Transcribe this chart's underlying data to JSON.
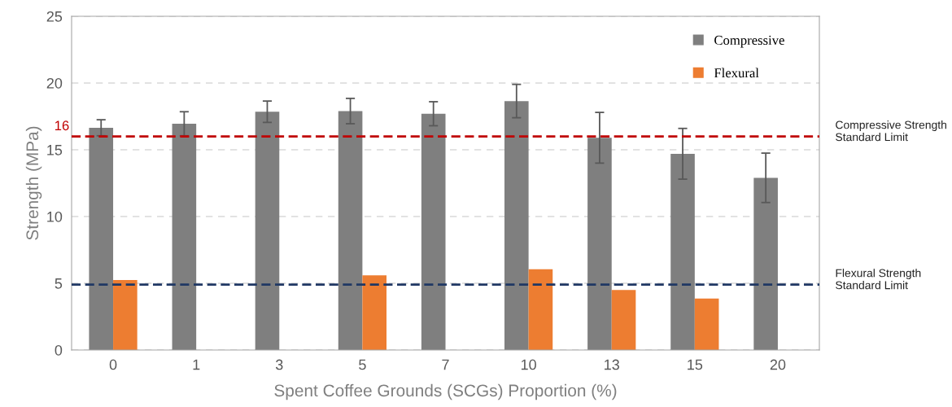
{
  "chart_data": {
    "type": "bar",
    "xlabel": "Spent Coffee Grounds (SCGs) Proportion (%)",
    "ylabel": "Strength (MPa)",
    "categories": [
      "0",
      "1",
      "3",
      "5",
      "7",
      "10",
      "13",
      "15",
      "20"
    ],
    "series": [
      {
        "name": "Compressive",
        "color": "#7f7f7f",
        "values": [
          16.65,
          16.95,
          17.85,
          17.9,
          17.7,
          18.65,
          15.9,
          14.7,
          12.9
        ],
        "errors": [
          0.6,
          0.9,
          0.8,
          0.95,
          0.9,
          1.25,
          1.9,
          1.9,
          1.85
        ]
      },
      {
        "name": "Flexural",
        "color": "#ed7d31",
        "values": [
          5.25,
          null,
          null,
          5.6,
          null,
          6.05,
          4.5,
          3.85,
          null
        ]
      }
    ],
    "ylim": [
      0,
      25
    ],
    "yticks": [
      0,
      5,
      10,
      15,
      20,
      25
    ],
    "grid": "y",
    "legend": "top right",
    "ref_lines": [
      {
        "axis": "y",
        "value": 16,
        "label": "Compressive Strength\nStandard Limit",
        "color": "#c00000",
        "line_style": "dashed"
      },
      {
        "axis": "y",
        "value": 4.9,
        "label": "Flexural Strength\nStandard Limit",
        "color": "#203864",
        "line_style": "dashed"
      }
    ],
    "annotations": [
      "16"
    ]
  }
}
